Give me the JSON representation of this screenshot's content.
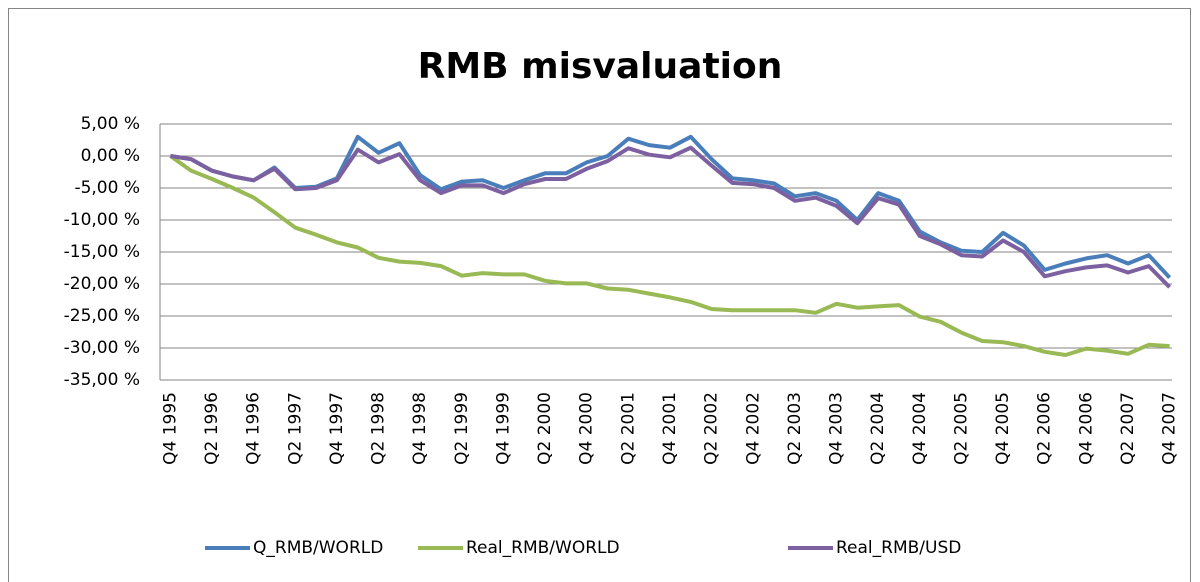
{
  "chart_data": {
    "type": "line",
    "title": "RMB misvaluation",
    "categories": [
      "Q4 1995",
      null,
      "Q2 1996",
      null,
      "Q4 1996",
      null,
      "Q2 1997",
      null,
      "Q4 1997",
      null,
      "Q2 1998",
      null,
      "Q4 1998",
      null,
      "Q2 1999",
      null,
      "Q4 1999",
      null,
      "Q2 2000",
      null,
      "Q4 2000",
      null,
      "Q2 2001",
      null,
      "Q4 2001",
      null,
      "Q2 2002",
      null,
      "Q4 2002",
      null,
      "Q2 2003",
      null,
      "Q4 2003",
      null,
      "Q2 2004",
      null,
      "Q4 2004",
      null,
      "Q2 2005",
      null,
      "Q4 2005",
      null,
      "Q2 2006",
      null,
      "Q4 2006",
      null,
      "Q2 2007",
      null,
      "Q4 2007"
    ],
    "series": [
      {
        "name": "Q_RMB/WORLD",
        "color": "#4a7ebb",
        "values": [
          0,
          -0.5,
          -2.3,
          -3.2,
          -3.8,
          -1.8,
          -5.0,
          -4.8,
          -3.5,
          3.0,
          0.5,
          2.0,
          -3.0,
          -5.2,
          -4.0,
          -3.8,
          -5.0,
          -3.8,
          -2.7,
          -2.7,
          -1.0,
          0.0,
          2.7,
          1.7,
          1.3,
          3.0,
          -0.5,
          -3.5,
          -3.8,
          -4.3,
          -6.3,
          -5.8,
          -7.0,
          -10.0,
          -5.8,
          -7.0,
          -11.8,
          -13.5,
          -14.8,
          -15.0,
          -12.0,
          -14.0,
          -17.8,
          -16.8,
          -16.0,
          -15.5,
          -16.8,
          -15.5,
          -19.0
        ]
      },
      {
        "name": "Real_RMB/WORLD",
        "color": "#98b954",
        "values": [
          0,
          -2.3,
          -3.6,
          -5.0,
          -6.5,
          -8.8,
          -11.2,
          -12.3,
          -13.5,
          -14.3,
          -15.9,
          -16.5,
          -16.7,
          -17.2,
          -18.7,
          -18.3,
          -18.5,
          -18.5,
          -19.5,
          -19.9,
          -19.9,
          -20.7,
          -20.9,
          -21.5,
          -22.1,
          -22.8,
          -23.9,
          -24.1,
          -24.1,
          -24.1,
          -24.1,
          -24.5,
          -23.1,
          -23.7,
          -23.5,
          -23.3,
          -25.1,
          -25.9,
          -27.6,
          -28.9,
          -29.1,
          -29.7,
          -30.6,
          -31.1,
          -30.1,
          -30.4,
          -30.9,
          -29.5,
          -29.7
        ]
      },
      {
        "name": "Real_RMB/USD",
        "color": "#7d60a0",
        "values": [
          0,
          -0.5,
          -2.3,
          -3.2,
          -3.8,
          -2.0,
          -5.2,
          -5.0,
          -3.8,
          1.0,
          -1.0,
          0.3,
          -3.8,
          -5.8,
          -4.6,
          -4.6,
          -5.8,
          -4.4,
          -3.6,
          -3.6,
          -2.0,
          -0.8,
          1.2,
          0.2,
          -0.2,
          1.3,
          -1.5,
          -4.2,
          -4.4,
          -5.0,
          -7.0,
          -6.5,
          -7.8,
          -10.5,
          -6.6,
          -7.6,
          -12.5,
          -13.8,
          -15.5,
          -15.7,
          -13.2,
          -15.0,
          -18.8,
          -18.0,
          -17.4,
          -17.1,
          -18.2,
          -17.2,
          -20.5
        ]
      }
    ],
    "ylim": [
      -35,
      5
    ],
    "yticks": [
      {
        "value": -35,
        "label": "-35,00 %"
      },
      {
        "value": -30,
        "label": "-30,00 %"
      },
      {
        "value": -25,
        "label": "-25,00 %"
      },
      {
        "value": -20,
        "label": "-20,00 %"
      },
      {
        "value": -15,
        "label": "-15,00 %"
      },
      {
        "value": -10,
        "label": "-10,00 %"
      },
      {
        "value": -5,
        "label": "-5,00 %"
      },
      {
        "value": 0,
        "label": "0,00 %"
      },
      {
        "value": 5,
        "label": "5,00 %"
      }
    ],
    "grid": true,
    "legend": "bottom"
  }
}
